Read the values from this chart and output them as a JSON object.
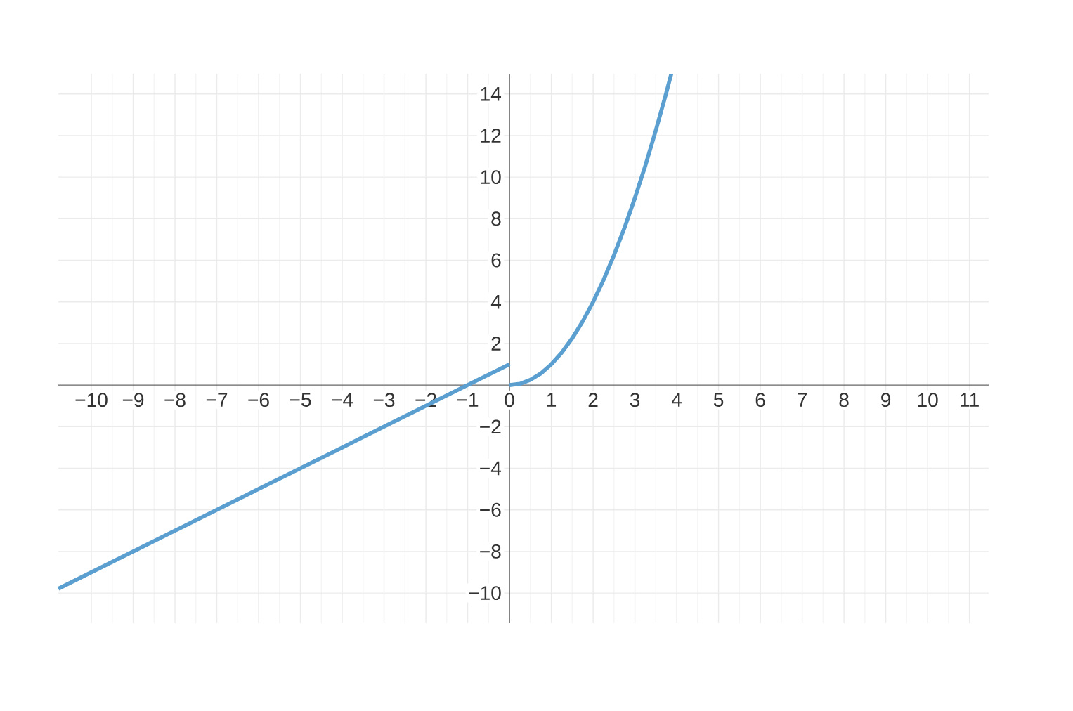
{
  "chart_data": {
    "type": "line",
    "series": [
      {
        "color": "#5a9fd0",
        "x": [
          -10.79,
          -8,
          -6,
          -4,
          -2,
          -1,
          0
        ],
        "values": [
          -9.79,
          -7,
          -5,
          -3,
          -1,
          0,
          1
        ]
      },
      {
        "color": "#5a9fd0",
        "x": [
          0,
          0.25,
          0.5,
          0.75,
          1,
          1.25,
          1.5,
          1.75,
          2,
          2.25,
          2.5,
          2.75,
          3,
          3.25,
          3.5,
          3.75,
          3.87
        ],
        "values": [
          0,
          0.06,
          0.25,
          0.56,
          1,
          1.56,
          2.25,
          3.06,
          4,
          5.06,
          6.25,
          7.56,
          9,
          10.56,
          12.25,
          14.06,
          14.97
        ]
      }
    ],
    "xlim": [
      -10.79,
      11.46
    ],
    "ylim": [
      -11.45,
      14.97
    ],
    "xticks": [
      {
        "value": -10,
        "label": "−10"
      },
      {
        "value": -9,
        "label": "−9"
      },
      {
        "value": -8,
        "label": "−8"
      },
      {
        "value": -7,
        "label": "−7"
      },
      {
        "value": -6,
        "label": "−6"
      },
      {
        "value": -5,
        "label": "−5"
      },
      {
        "value": -4,
        "label": "−4"
      },
      {
        "value": -3,
        "label": "−3"
      },
      {
        "value": -2,
        "label": "−2"
      },
      {
        "value": -1,
        "label": "−1"
      },
      0,
      1,
      2,
      3,
      4,
      5,
      6,
      7,
      8,
      9,
      10,
      11
    ],
    "yticks": [
      {
        "value": -10,
        "label": "−10"
      },
      {
        "value": -8,
        "label": "−8"
      },
      {
        "value": -6,
        "label": "−6"
      },
      {
        "value": -4,
        "label": "−4"
      },
      {
        "value": -2,
        "label": "−2"
      },
      2,
      4,
      6,
      8,
      10,
      12,
      14
    ],
    "grid": true
  }
}
